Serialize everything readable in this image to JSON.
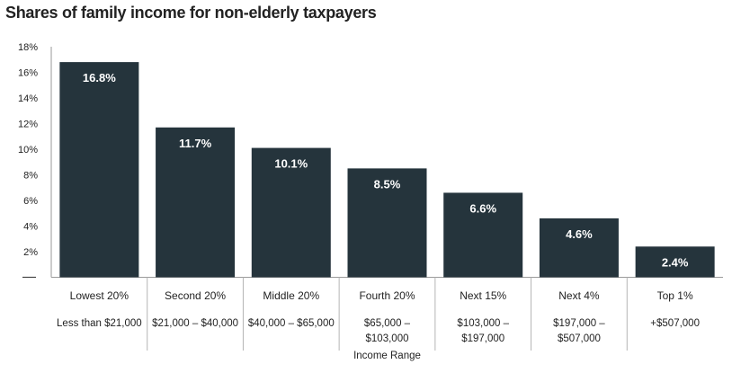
{
  "chart_data": {
    "type": "bar",
    "title": "Shares of family income for non-elderly taxpayers",
    "categories": [
      "Lowest 20%",
      "Second 20%",
      "Middle 20%",
      "Fourth 20%",
      "Next 15%",
      "Next 4%",
      "Top 1%"
    ],
    "income_ranges": [
      [
        "Less than $21,000"
      ],
      [
        "$21,000 – $40,000"
      ],
      [
        "$40,000 – $65,000"
      ],
      [
        "$65,000 –",
        "$103,000"
      ],
      [
        "$103,000 –",
        "$197,000"
      ],
      [
        "$197,000 –",
        "$507,000"
      ],
      [
        "+$507,000"
      ]
    ],
    "values": [
      16.8,
      11.7,
      10.1,
      8.5,
      6.6,
      4.6,
      2.4
    ],
    "value_labels": [
      "16.8%",
      "11.7%",
      "10.1%",
      "8.5%",
      "6.6%",
      "4.6%",
      "2.4%"
    ],
    "y_ticks": [
      2,
      4,
      6,
      8,
      10,
      12,
      14,
      16,
      18
    ],
    "y_tick_labels": [
      "2%",
      "4%",
      "6%",
      "8%",
      "10%",
      "12%",
      "14%",
      "16%",
      "18%"
    ],
    "ylim": [
      0,
      18
    ],
    "xlabel": "Income Range",
    "ylabel": "",
    "grid": false,
    "bar_color": "#25343c",
    "label_color": "#ffffff"
  }
}
